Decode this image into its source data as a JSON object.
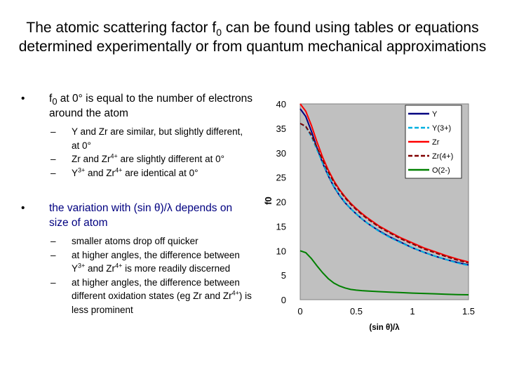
{
  "title": {
    "pre": "The atomic scattering factor f",
    "sub": "0",
    "post": " can be found using tables or equations determined experimentally or from quantum mechanical approximations"
  },
  "bullets": [
    {
      "marker": "•",
      "color": "#000000",
      "parts": [
        {
          "t": "f"
        },
        {
          "t": "0",
          "s": "sub"
        },
        {
          "t": " at 0° is equal to the number of electrons around the atom"
        }
      ],
      "subs": [
        {
          "marker": "–",
          "parts": [
            {
              "t": "Y and Zr are similar, but slightly different, at 0°"
            }
          ]
        },
        {
          "marker": "–",
          "parts": [
            {
              "t": "Zr and Zr"
            },
            {
              "t": "4+",
              "s": "sup"
            },
            {
              "t": " are slightly different at 0°"
            }
          ]
        },
        {
          "marker": "–",
          "parts": [
            {
              "t": "Y"
            },
            {
              "t": "3+",
              "s": "sup"
            },
            {
              "t": " and Zr"
            },
            {
              "t": "4+",
              "s": "sup"
            },
            {
              "t": " are identical at 0°"
            }
          ]
        }
      ]
    },
    {
      "marker": "•",
      "color": "#000080",
      "parts": [
        {
          "t": "the variation with (sin θ)/λ depends on size of atom"
        }
      ],
      "subs": [
        {
          "marker": "–",
          "parts": [
            {
              "t": "smaller atoms drop off quicker"
            }
          ]
        },
        {
          "marker": "–",
          "parts": [
            {
              "t": "at higher angles, the difference between Y"
            },
            {
              "t": "3+",
              "s": "sup"
            },
            {
              "t": " and Zr"
            },
            {
              "t": "4+",
              "s": "sup"
            },
            {
              "t": " is more readily discerned"
            }
          ]
        },
        {
          "marker": "–",
          "parts": [
            {
              "t": "at higher angles, the difference between different oxidation states (eg Zr and Zr"
            },
            {
              "t": "4+",
              "s": "sup"
            },
            {
              "t": ") is less prominent"
            }
          ]
        }
      ]
    }
  ],
  "chart_data": {
    "type": "line",
    "xlabel": "(sin θ)/λ",
    "ylabel": "f0",
    "xlim": [
      0,
      1.5
    ],
    "ylim": [
      0,
      40
    ],
    "xticks": [
      "0",
      "0.5",
      "1",
      "1.5"
    ],
    "yticks": [
      "0",
      "5",
      "10",
      "15",
      "20",
      "25",
      "30",
      "35",
      "40"
    ],
    "plot_background": "#c0c0c0",
    "legend_position": "top-right",
    "x": [
      0,
      0.05,
      0.1,
      0.15,
      0.2,
      0.25,
      0.3,
      0.35,
      0.4,
      0.45,
      0.5,
      0.55,
      0.6,
      0.7,
      0.8,
      0.9,
      1.0,
      1.1,
      1.2,
      1.3,
      1.4,
      1.5
    ],
    "series": [
      {
        "name": "Y",
        "color": "#000080",
        "dash": "",
        "values": [
          39,
          37.4,
          34.4,
          31.0,
          27.9,
          25.3,
          23.1,
          21.3,
          19.8,
          18.6,
          17.5,
          16.5,
          15.6,
          14.1,
          12.8,
          11.7,
          10.6,
          9.7,
          8.9,
          8.2,
          7.6,
          7.1
        ]
      },
      {
        "name": "Y(3+)",
        "color": "#00b0e0",
        "dash": "6,3",
        "values": [
          36,
          35.3,
          33.3,
          30.6,
          27.9,
          25.4,
          23.2,
          21.4,
          19.9,
          18.6,
          17.5,
          16.5,
          15.6,
          14.0,
          12.7,
          11.6,
          10.6,
          9.7,
          8.9,
          8.2,
          7.5,
          7.0
        ]
      },
      {
        "name": "Zr",
        "color": "#ff0000",
        "dash": "",
        "values": [
          40,
          38.5,
          35.6,
          32.2,
          29.1,
          26.5,
          24.3,
          22.5,
          21.0,
          19.7,
          18.6,
          17.6,
          16.7,
          15.1,
          13.8,
          12.6,
          11.6,
          10.6,
          9.8,
          9.0,
          8.3,
          7.7
        ]
      },
      {
        "name": "Zr(4+)",
        "color": "#800000",
        "dash": "6,3",
        "values": [
          36,
          35.4,
          33.6,
          31.1,
          28.5,
          26.1,
          24.0,
          22.3,
          20.8,
          19.5,
          18.4,
          17.4,
          16.5,
          14.9,
          13.6,
          12.4,
          11.4,
          10.4,
          9.6,
          8.8,
          8.1,
          7.5
        ]
      },
      {
        "name": "O(2-)",
        "color": "#008000",
        "dash": "",
        "values": [
          10,
          9.6,
          8.4,
          6.9,
          5.5,
          4.3,
          3.4,
          2.8,
          2.4,
          2.1,
          1.95,
          1.85,
          1.78,
          1.65,
          1.55,
          1.45,
          1.35,
          1.27,
          1.2,
          1.12,
          1.05,
          1.0
        ]
      }
    ]
  }
}
